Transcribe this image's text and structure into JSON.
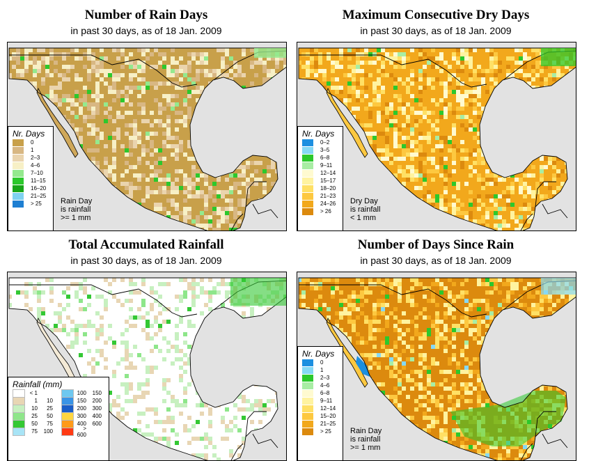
{
  "panels": {
    "rain_days": {
      "title": "Number of Rain Days",
      "subtitle": "in past 30 days, as of  18 Jan. 2009",
      "legend_title": "Nr. Days",
      "legend": [
        {
          "label": "0",
          "color": "#c8a04a"
        },
        {
          "label": "1",
          "color": "#d8b783"
        },
        {
          "label": "2–3",
          "color": "#ead4ae"
        },
        {
          "label": "4–6",
          "color": "#f7f0c6"
        },
        {
          "label": "7–10",
          "color": "#94e98e"
        },
        {
          "label": "11–15",
          "color": "#2cc82c"
        },
        {
          "label": "16–20",
          "color": "#18a618"
        },
        {
          "label": "21–25",
          "color": "#7fd2f0"
        },
        {
          "label": "> 25",
          "color": "#1e7fd2"
        }
      ],
      "note": [
        "Rain Day",
        "is rainfall",
        ">= 1 mm"
      ]
    },
    "dry_days": {
      "title": "Maximum Consecutive Dry Days",
      "subtitle": "in past 30 days, as of  18 Jan. 2009",
      "legend_title": "Nr. Days",
      "legend": [
        {
          "label": "0–2",
          "color": "#1c8fe0"
        },
        {
          "label": "3–5",
          "color": "#86d9f5"
        },
        {
          "label": "6–8",
          "color": "#2cc82c"
        },
        {
          "label": "9–11",
          "color": "#a8eda4"
        },
        {
          "label": "12–14",
          "color": "#fffad0"
        },
        {
          "label": "15–17",
          "color": "#fff3a0"
        },
        {
          "label": "18–20",
          "color": "#ffe065"
        },
        {
          "label": "21–23",
          "color": "#fdc840"
        },
        {
          "label": "24–26",
          "color": "#f2a81c"
        },
        {
          "label": "> 26",
          "color": "#dc8a0e"
        }
      ],
      "note": [
        "Dry Day",
        "is rainfall",
        "< 1 mm"
      ]
    },
    "rainfall": {
      "title": "Total Accumulated Rainfall",
      "subtitle": "in past 30 days, as of  18 Jan. 2009",
      "legend_title": "Rainfall (mm)",
      "legend_left": [
        {
          "a": "< 1",
          "b": "",
          "color": "#ffffff"
        },
        {
          "a": "1",
          "b": "10",
          "color": "#e8d6b4"
        },
        {
          "a": "10",
          "b": "25",
          "color": "#c7f0c0"
        },
        {
          "a": "25",
          "b": "50",
          "color": "#8ee68a"
        },
        {
          "a": "50",
          "b": "75",
          "color": "#34c834"
        },
        {
          "a": "75",
          "b": "100",
          "color": "#a8e4f6"
        }
      ],
      "legend_right": [
        {
          "a": "100",
          "b": "150",
          "color": "#6ec8f0"
        },
        {
          "a": "150",
          "b": "200",
          "color": "#3a94e6"
        },
        {
          "a": "200",
          "b": "300",
          "color": "#1a5ec8"
        },
        {
          "a": "300",
          "b": "400",
          "color": "#ffd640"
        },
        {
          "a": "400",
          "b": "600",
          "color": "#ff9a1a"
        },
        {
          "a": "> 600",
          "b": "",
          "color": "#ff3a14"
        }
      ]
    },
    "since_rain": {
      "title": "Number of Days Since Rain",
      "subtitle": "in past 30 days, as of  18 Jan. 2009",
      "legend_title": "Nr. Days",
      "legend": [
        {
          "label": "0",
          "color": "#1c8fe0"
        },
        {
          "label": "1",
          "color": "#86d9f5"
        },
        {
          "label": "2–3",
          "color": "#2cc82c"
        },
        {
          "label": "4–6",
          "color": "#a8eda4"
        },
        {
          "label": "6–8",
          "color": "#fffad0"
        },
        {
          "label": "9–11",
          "color": "#fff3a0"
        },
        {
          "label": "12–14",
          "color": "#ffe065"
        },
        {
          "label": "15–20",
          "color": "#fdc840"
        },
        {
          "label": "21–25",
          "color": "#f2a81c"
        },
        {
          "label": "> 25",
          "color": "#dc8a0e"
        }
      ],
      "note": [
        "Rain Day",
        "is rainfall",
        ">= 1 mm"
      ]
    }
  },
  "colors": {
    "ocean": "#e2e2e2",
    "rain_days_base": "#c8a04a",
    "dry_days_base": "#f2a81c",
    "rainfall_base": "#ffffff",
    "since_rain_base": "#dc8a0e"
  }
}
